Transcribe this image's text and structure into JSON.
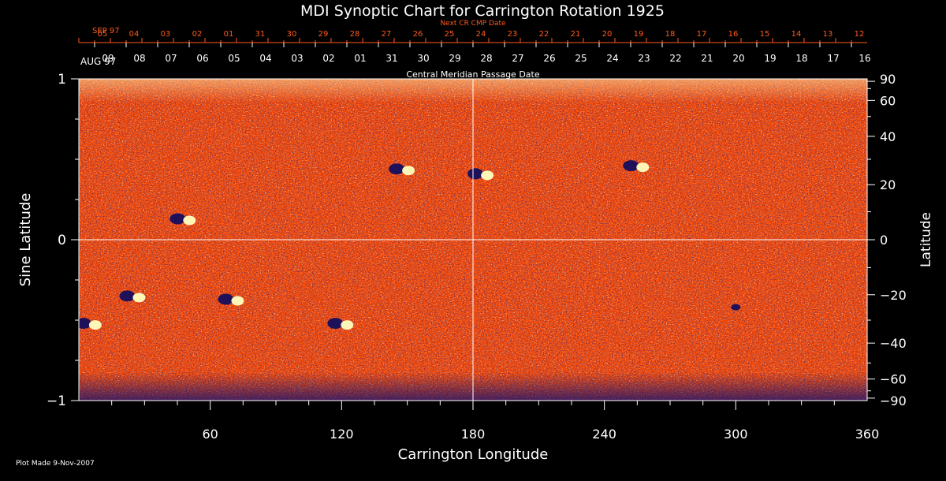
{
  "chart_data": {
    "type": "heatmap",
    "title": "MDI Synoptic Chart for Carrington Rotation 1925",
    "xlabel": "Carrington Longitude",
    "ylabel_left": "Sine Latitude",
    "ylabel_right": "Latitude",
    "xlim": [
      0,
      360
    ],
    "ylim": [
      -1,
      1
    ],
    "x_ticks": [
      60,
      120,
      180,
      240,
      300,
      360
    ],
    "y_left_ticks": [
      {
        "v": 1,
        "label": "1"
      },
      {
        "v": 0,
        "label": "0"
      },
      {
        "v": -1,
        "label": "−1"
      }
    ],
    "y_right_ticks": [
      90,
      60,
      40,
      20,
      0,
      -20,
      -40,
      -60,
      -90
    ],
    "next_cr_label": "Next CR CMP Date",
    "next_cr_start": "SEP 97",
    "next_cr_days": [
      "05",
      "04",
      "03",
      "02",
      "01",
      "31",
      "30",
      "29",
      "28",
      "27",
      "26",
      "25",
      "24",
      "23",
      "22",
      "21",
      "20",
      "19",
      "18",
      "17",
      "16",
      "15",
      "14",
      "13",
      "12"
    ],
    "cmp_label": "Central Meridian Passage Date",
    "cmp_start": "AUG 97",
    "cmp_days": [
      "09",
      "08",
      "07",
      "06",
      "05",
      "04",
      "03",
      "02",
      "01",
      "31",
      "30",
      "29",
      "28",
      "27",
      "26",
      "25",
      "24",
      "23",
      "22",
      "21",
      "20",
      "19",
      "18",
      "17",
      "16"
    ],
    "plot_made": "Plot Made  9-Nov-2007",
    "gridlines": {
      "longitude": 180,
      "sine_latitude": 0
    },
    "colors": {
      "background": "#ff4a00",
      "axis": "#ffffff",
      "top_axis": "#ff5a1e",
      "positive_flux": "#ffffc0",
      "negative_flux": "#0a0a60"
    },
    "features": [
      {
        "lon": 148,
        "sinlat": 0.44,
        "polarity": "mixed"
      },
      {
        "lon": 184,
        "sinlat": 0.41,
        "polarity": "mixed"
      },
      {
        "lon": 255,
        "sinlat": 0.46,
        "polarity": "mixed"
      },
      {
        "lon": 48,
        "sinlat": 0.13,
        "polarity": "mixed"
      },
      {
        "lon": 25,
        "sinlat": -0.35,
        "polarity": "mixed"
      },
      {
        "lon": 70,
        "sinlat": -0.37,
        "polarity": "mixed"
      },
      {
        "lon": 5,
        "sinlat": -0.52,
        "polarity": "mixed"
      },
      {
        "lon": 120,
        "sinlat": -0.52,
        "polarity": "mixed"
      },
      {
        "lon": 300,
        "sinlat": -0.42,
        "polarity": "negative"
      }
    ]
  }
}
